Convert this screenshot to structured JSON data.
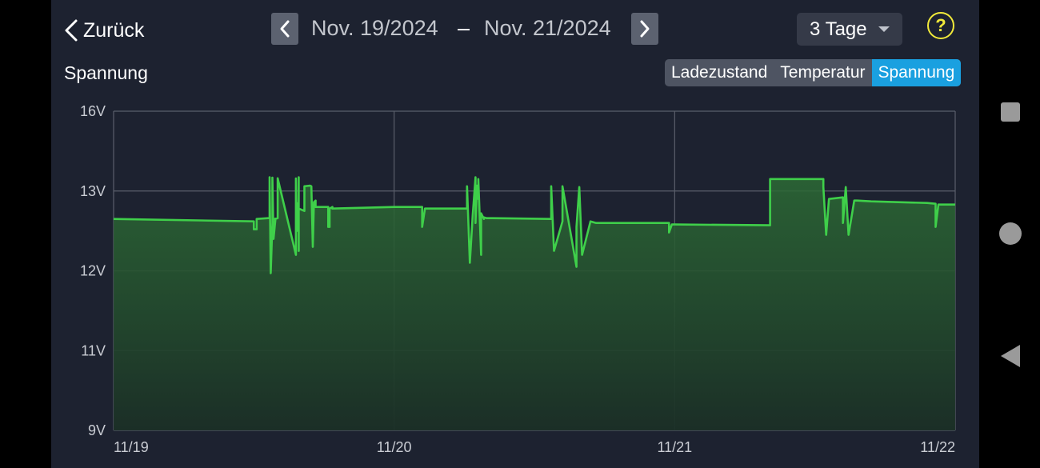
{
  "header": {
    "back_label": "Zurück",
    "date_start": "Nov. 19/2024",
    "date_separator": "–",
    "date_end": "Nov. 21/2024",
    "range_label": "3 Tage",
    "help_label": "?"
  },
  "chart_title": "Spannung",
  "tabs": [
    {
      "label": "Ladezustand",
      "active": false
    },
    {
      "label": "Temperatur",
      "active": false
    },
    {
      "label": "Spannung",
      "active": true
    }
  ],
  "colors": {
    "line": "#3fcf4a",
    "fill_top": "#2c6b35",
    "fill_bottom": "#1b2f26",
    "tab_active": "#1aa0e0",
    "help": "#f2ea3a"
  },
  "chart_data": {
    "type": "area",
    "title": "Spannung",
    "x_unit": "day",
    "x_ticks": [
      "11/19",
      "11/20",
      "11/21",
      "11/22"
    ],
    "y_ticks": [
      "16V",
      "13V",
      "12V",
      "11V",
      "9V"
    ],
    "y_tick_values": [
      16,
      13,
      12,
      11,
      9
    ],
    "x_range": [
      0,
      3
    ],
    "grid": true,
    "series": [
      {
        "x": [
          0,
          0.5,
          0.5,
          0.51,
          0.51,
          0.55,
          0.556,
          0.556,
          0.56,
          0.566,
          0.566,
          0.57,
          0.577,
          0.573,
          0.585,
          0.585,
          0.65,
          0.65,
          0.653,
          0.653,
          0.66,
          0.66,
          0.66,
          0.66,
          0.68,
          0.68,
          0.7,
          0.705,
          0.71,
          0.714,
          0.72,
          0.72,
          0.765,
          0.765,
          0.77,
          0.77,
          0.78,
          0.78,
          1.0,
          1.1,
          1.1,
          1.11,
          1.26,
          1.26,
          1.27,
          1.28,
          1.29,
          1.29,
          1.295,
          1.3,
          1.3,
          1.31,
          1.31,
          1.32,
          1.32,
          1.33,
          1.34,
          1.35,
          1.56,
          1.56,
          1.57,
          1.6,
          1.6,
          1.65,
          1.65,
          1.66,
          1.67,
          1.7,
          1.7,
          1.72,
          1.73,
          1.98,
          1.98,
          1.99,
          2.0,
          2.34,
          2.34,
          2.53,
          2.53,
          2.54,
          2.55,
          2.6,
          2.6,
          2.61,
          2.62,
          2.64,
          2.65,
          2.7,
          2.9,
          2.93,
          2.93,
          2.94,
          3.0
        ],
        "y": [
          12.65,
          12.62,
          12.52,
          12.52,
          12.65,
          12.66,
          12.66,
          13.52,
          11.97,
          12.6,
          13.5,
          12.4,
          12.65,
          12.65,
          12.66,
          13.48,
          12.2,
          13.47,
          12.5,
          12.85,
          12.82,
          12.25,
          13.52,
          12.78,
          12.75,
          13.18,
          13.2,
          13.18,
          12.3,
          12.86,
          12.88,
          12.8,
          12.8,
          12.55,
          12.55,
          12.78,
          12.8,
          12.78,
          12.8,
          12.8,
          12.55,
          12.78,
          12.78,
          13.18,
          12.1,
          12.7,
          13.52,
          12.6,
          13.2,
          12.9,
          13.45,
          12.2,
          12.72,
          12.65,
          12.67,
          12.66,
          12.66,
          12.66,
          12.65,
          13.18,
          12.25,
          12.62,
          13.18,
          12.05,
          12.55,
          13.15,
          12.2,
          12.62,
          12.62,
          12.6,
          12.6,
          12.6,
          12.48,
          12.58,
          12.58,
          12.57,
          13.45,
          13.45,
          13.15,
          12.45,
          12.9,
          12.92,
          12.6,
          13.15,
          12.45,
          12.88,
          12.88,
          12.87,
          12.85,
          12.84,
          12.55,
          12.83,
          12.83
        ]
      }
    ]
  }
}
